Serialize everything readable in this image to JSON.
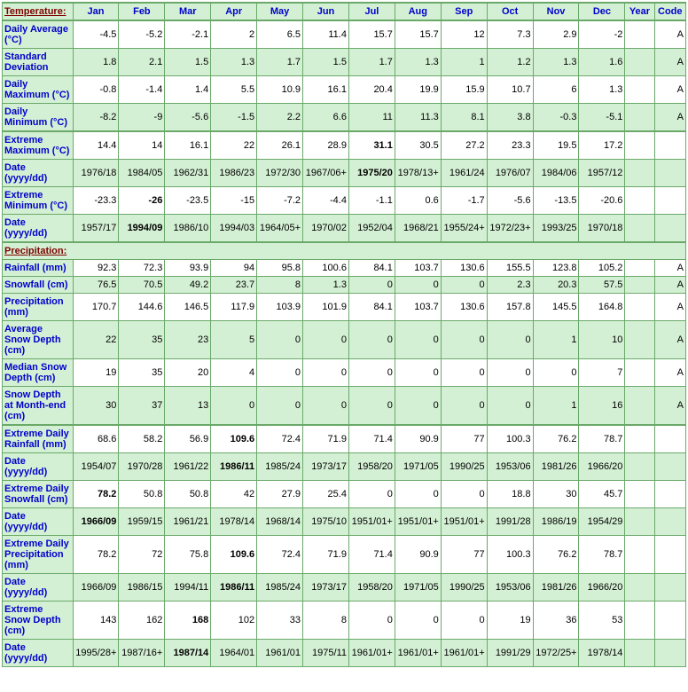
{
  "header": {
    "section_link": "Temperature:",
    "months": [
      "Jan",
      "Feb",
      "Mar",
      "Apr",
      "May",
      "Jun",
      "Jul",
      "Aug",
      "Sep",
      "Oct",
      "Nov",
      "Dec"
    ],
    "year": "Year",
    "code": "Code"
  },
  "rows_temp": [
    {
      "label": "Daily Average (°C)",
      "d": [
        "-4.5",
        "-5.2",
        "-2.1",
        "2",
        "6.5",
        "11.4",
        "15.7",
        "15.7",
        "12",
        "7.3",
        "2.9",
        "-2",
        "",
        "A"
      ],
      "cls": "odd"
    },
    {
      "label": "Standard Deviation",
      "d": [
        "1.8",
        "2.1",
        "1.5",
        "1.3",
        "1.7",
        "1.5",
        "1.7",
        "1.3",
        "1",
        "1.2",
        "1.3",
        "1.6",
        "",
        "A"
      ],
      "cls": "even"
    },
    {
      "label": "Daily Maximum (°C)",
      "d": [
        "-0.8",
        "-1.4",
        "1.4",
        "5.5",
        "10.9",
        "16.1",
        "20.4",
        "19.9",
        "15.9",
        "10.7",
        "6",
        "1.3",
        "",
        "A"
      ],
      "cls": "odd"
    },
    {
      "label": "Daily Minimum (°C)",
      "d": [
        "-8.2",
        "-9",
        "-5.6",
        "-1.5",
        "2.2",
        "6.6",
        "11",
        "11.3",
        "8.1",
        "3.8",
        "-0.3",
        "-5.1",
        "",
        "A"
      ],
      "cls": "even"
    },
    {
      "label": "Extreme Maximum (°C)",
      "d": [
        "14.4",
        "14",
        "16.1",
        "22",
        "26.1",
        "28.9",
        "31.1",
        "30.5",
        "27.2",
        "23.3",
        "19.5",
        "17.2",
        "",
        ""
      ],
      "cls": "odd",
      "section": true,
      "bold": [
        6
      ]
    },
    {
      "label": "Date (yyyy/dd)",
      "d": [
        "1976/18",
        "1984/05",
        "1962/31",
        "1986/23",
        "1972/30",
        "1967/06+",
        "1975/20",
        "1978/13+",
        "1961/24",
        "1976/07",
        "1984/06",
        "1957/12",
        "",
        ""
      ],
      "cls": "even",
      "bold": [
        6
      ]
    },
    {
      "label": "Extreme Minimum (°C)",
      "d": [
        "-23.3",
        "-26",
        "-23.5",
        "-15",
        "-7.2",
        "-4.4",
        "-1.1",
        "0.6",
        "-1.7",
        "-5.6",
        "-13.5",
        "-20.6",
        "",
        ""
      ],
      "cls": "odd",
      "bold": [
        1
      ]
    },
    {
      "label": "Date (yyyy/dd)",
      "d": [
        "1957/17",
        "1994/09",
        "1986/10",
        "1994/03",
        "1964/05+",
        "1970/02",
        "1952/04",
        "1968/21",
        "1955/24+",
        "1972/23+",
        "1993/25",
        "1970/18",
        "",
        ""
      ],
      "cls": "even",
      "bold": [
        1
      ]
    }
  ],
  "precip_header": "Precipitation:",
  "rows_precip": [
    {
      "label": "Rainfall (mm)",
      "d": [
        "92.3",
        "72.3",
        "93.9",
        "94",
        "95.8",
        "100.6",
        "84.1",
        "103.7",
        "130.6",
        "155.5",
        "123.8",
        "105.2",
        "",
        "A"
      ],
      "cls": "odd"
    },
    {
      "label": "Snowfall (cm)",
      "d": [
        "76.5",
        "70.5",
        "49.2",
        "23.7",
        "8",
        "1.3",
        "0",
        "0",
        "0",
        "2.3",
        "20.3",
        "57.5",
        "",
        "A"
      ],
      "cls": "even"
    },
    {
      "label": "Precipitation (mm)",
      "d": [
        "170.7",
        "144.6",
        "146.5",
        "117.9",
        "103.9",
        "101.9",
        "84.1",
        "103.7",
        "130.6",
        "157.8",
        "145.5",
        "164.8",
        "",
        "A"
      ],
      "cls": "odd"
    },
    {
      "label": "Average Snow Depth (cm)",
      "d": [
        "22",
        "35",
        "23",
        "5",
        "0",
        "0",
        "0",
        "0",
        "0",
        "0",
        "1",
        "10",
        "",
        "A"
      ],
      "cls": "even"
    },
    {
      "label": "Median Snow Depth (cm)",
      "d": [
        "19",
        "35",
        "20",
        "4",
        "0",
        "0",
        "0",
        "0",
        "0",
        "0",
        "0",
        "7",
        "",
        "A"
      ],
      "cls": "odd"
    },
    {
      "label": "Snow Depth at Month-end (cm)",
      "d": [
        "30",
        "37",
        "13",
        "0",
        "0",
        "0",
        "0",
        "0",
        "0",
        "0",
        "1",
        "16",
        "",
        "A"
      ],
      "cls": "even"
    },
    {
      "label": "Extreme Daily Rainfall (mm)",
      "d": [
        "68.6",
        "58.2",
        "56.9",
        "109.6",
        "72.4",
        "71.9",
        "71.4",
        "90.9",
        "77",
        "100.3",
        "76.2",
        "78.7",
        "",
        ""
      ],
      "cls": "odd",
      "section": true,
      "bold": [
        3
      ]
    },
    {
      "label": "Date (yyyy/dd)",
      "d": [
        "1954/07",
        "1970/28",
        "1961/22",
        "1986/11",
        "1985/24",
        "1973/17",
        "1958/20",
        "1971/05",
        "1990/25",
        "1953/06",
        "1981/26",
        "1966/20",
        "",
        ""
      ],
      "cls": "even",
      "bold": [
        3
      ]
    },
    {
      "label": "Extreme Daily Snowfall (cm)",
      "d": [
        "78.2",
        "50.8",
        "50.8",
        "42",
        "27.9",
        "25.4",
        "0",
        "0",
        "0",
        "18.8",
        "30",
        "45.7",
        "",
        ""
      ],
      "cls": "odd",
      "bold": [
        0
      ]
    },
    {
      "label": "Date (yyyy/dd)",
      "d": [
        "1966/09",
        "1959/15",
        "1961/21",
        "1978/14",
        "1968/14",
        "1975/10",
        "1951/01+",
        "1951/01+",
        "1951/01+",
        "1991/28",
        "1986/19",
        "1954/29",
        "",
        ""
      ],
      "cls": "even",
      "bold": [
        0
      ]
    },
    {
      "label": "Extreme Daily Precipitation (mm)",
      "d": [
        "78.2",
        "72",
        "75.8",
        "109.6",
        "72.4",
        "71.9",
        "71.4",
        "90.9",
        "77",
        "100.3",
        "76.2",
        "78.7",
        "",
        ""
      ],
      "cls": "odd",
      "bold": [
        3
      ]
    },
    {
      "label": "Date (yyyy/dd)",
      "d": [
        "1966/09",
        "1986/15",
        "1994/11",
        "1986/11",
        "1985/24",
        "1973/17",
        "1958/20",
        "1971/05",
        "1990/25",
        "1953/06",
        "1981/26",
        "1966/20",
        "",
        ""
      ],
      "cls": "even",
      "bold": [
        3
      ]
    },
    {
      "label": "Extreme Snow Depth (cm)",
      "d": [
        "143",
        "162",
        "168",
        "102",
        "33",
        "8",
        "0",
        "0",
        "0",
        "19",
        "36",
        "53",
        "",
        ""
      ],
      "cls": "odd",
      "bold": [
        2
      ]
    },
    {
      "label": "Date (yyyy/dd)",
      "d": [
        "1995/28+",
        "1987/16+",
        "1987/14",
        "1964/01",
        "1961/01",
        "1975/11",
        "1961/01+",
        "1961/01+",
        "1961/01+",
        "1991/29",
        "1972/25+",
        "1978/14",
        "",
        ""
      ],
      "cls": "even",
      "bold": [
        2
      ]
    }
  ]
}
